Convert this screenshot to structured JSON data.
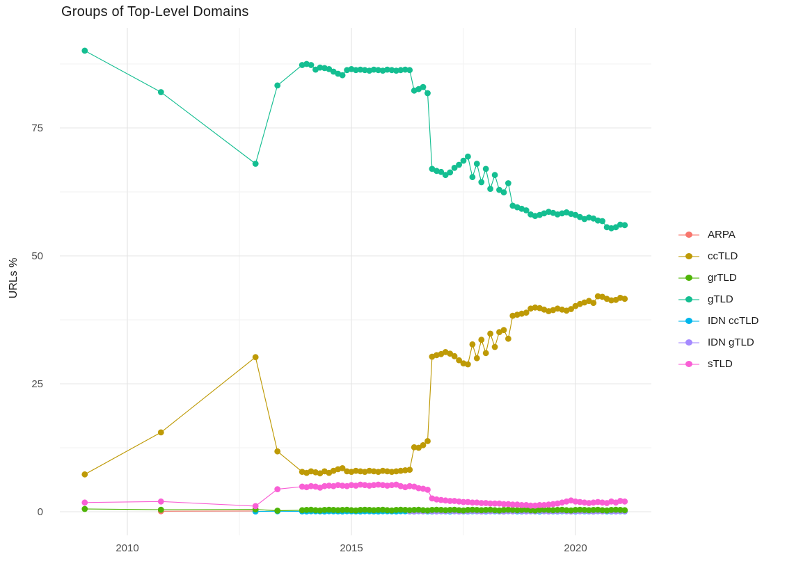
{
  "page": {
    "title": "Groups of Top-Level Domains"
  },
  "axes": {
    "ylabel": "URLs %",
    "x_major_ticks": [
      2010,
      2015,
      2020
    ],
    "x_minor_ticks": [
      2012.5,
      2017.5
    ],
    "y_major_ticks": [
      0,
      25,
      50,
      75
    ],
    "y_minor_ticks": [
      12.5,
      37.5,
      62.5,
      87.5
    ],
    "x_range": [
      2008.45,
      2021.7
    ],
    "y_range": [
      -4.5,
      94.5
    ]
  },
  "colors": {
    "grid_major": "#e4e4e4",
    "grid_minor": "#f2f2f2",
    "tick_text": "#4d4d4d",
    "title_text": "#1a1a1a"
  },
  "chart_data": {
    "type": "line",
    "title": "Groups of Top-Level Domains",
    "xlabel": "",
    "ylabel": "URLs %",
    "grid": true,
    "legend_position": "right",
    "series": [
      {
        "name": "ARPA",
        "color": "#F8766D",
        "z": 1,
        "early": [
          [
            2010.75,
            0.1
          ],
          [
            2012.86,
            0.15
          ]
        ],
        "dense": null
      },
      {
        "name": "ccTLD",
        "color": "#BE9A06",
        "z": 2,
        "early": [
          [
            2009.05,
            7.3
          ],
          [
            2010.75,
            15.5
          ],
          [
            2012.86,
            30.2
          ],
          [
            2013.35,
            11.8
          ]
        ],
        "dense": {
          "x0": 2013.9,
          "dx": 0.1,
          "values": [
            7.8,
            7.6,
            7.9,
            7.7,
            7.5,
            7.9,
            7.6,
            8.0,
            8.3,
            8.5,
            7.9,
            7.8,
            8.0,
            7.9,
            7.8,
            8.0,
            7.9,
            7.8,
            8.0,
            7.9,
            7.8,
            7.9,
            8.0,
            8.1,
            8.2,
            12.6,
            12.5,
            13.0,
            13.8,
            30.3,
            30.6,
            30.8,
            31.2,
            30.9,
            30.4,
            29.6,
            29.0,
            28.8,
            32.7,
            30.0,
            33.6,
            31.0,
            34.8,
            32.2,
            35.1,
            35.5,
            33.8,
            38.3,
            38.5,
            38.7,
            38.9,
            39.7,
            39.9,
            39.8,
            39.5,
            39.2,
            39.4,
            39.7,
            39.5,
            39.3,
            39.6,
            40.2,
            40.6,
            40.9,
            41.2,
            40.8,
            42.1,
            42.0,
            41.6,
            41.3,
            41.4,
            41.8,
            41.6
          ]
        }
      },
      {
        "name": "grTLD",
        "color": "#4EB406",
        "z": 6,
        "early": [
          [
            2009.05,
            0.55
          ],
          [
            2010.75,
            0.4
          ],
          [
            2012.86,
            0.45
          ],
          [
            2013.35,
            0.2
          ]
        ],
        "dense": {
          "x0": 2013.9,
          "dx": 0.1,
          "values": [
            0.3,
            0.35,
            0.4,
            0.3,
            0.25,
            0.35,
            0.4,
            0.35,
            0.3,
            0.35,
            0.4,
            0.3,
            0.25,
            0.35,
            0.4,
            0.35,
            0.3,
            0.35,
            0.4,
            0.3,
            0.25,
            0.35,
            0.4,
            0.35,
            0.3,
            0.35,
            0.4,
            0.3,
            0.25,
            0.35,
            0.4,
            0.35,
            0.3,
            0.35,
            0.4,
            0.3,
            0.25,
            0.35,
            0.4,
            0.35,
            0.3,
            0.35,
            0.4,
            0.3,
            0.25,
            0.35,
            0.4,
            0.35,
            0.3,
            0.35,
            0.4,
            0.3,
            0.25,
            0.35,
            0.4,
            0.35,
            0.3,
            0.35,
            0.4,
            0.3,
            0.25,
            0.35,
            0.4,
            0.35,
            0.3,
            0.35,
            0.4,
            0.3,
            0.25,
            0.35,
            0.4,
            0.35,
            0.3
          ]
        }
      },
      {
        "name": "gTLD",
        "color": "#14BE91",
        "z": 3,
        "early": [
          [
            2009.05,
            90.1
          ],
          [
            2010.75,
            82.0
          ],
          [
            2012.86,
            68.0
          ],
          [
            2013.35,
            83.3
          ]
        ],
        "dense": {
          "x0": 2013.9,
          "dx": 0.1,
          "values": [
            87.3,
            87.5,
            87.3,
            86.4,
            86.8,
            86.7,
            86.5,
            86.0,
            85.6,
            85.3,
            86.3,
            86.5,
            86.3,
            86.4,
            86.3,
            86.2,
            86.4,
            86.3,
            86.2,
            86.4,
            86.3,
            86.2,
            86.3,
            86.4,
            86.3,
            82.3,
            82.6,
            83.0,
            81.8,
            67.0,
            66.6,
            66.4,
            65.8,
            66.3,
            67.2,
            67.8,
            68.6,
            69.4,
            65.4,
            68.0,
            64.4,
            67.0,
            63.1,
            65.8,
            62.9,
            62.4,
            64.2,
            59.8,
            59.5,
            59.2,
            58.9,
            58.1,
            57.8,
            58.0,
            58.3,
            58.6,
            58.4,
            58.1,
            58.3,
            58.5,
            58.2,
            58.0,
            57.6,
            57.2,
            57.5,
            57.3,
            56.9,
            56.8,
            55.6,
            55.4,
            55.6,
            56.1,
            56.0
          ]
        }
      },
      {
        "name": "IDN ccTLD",
        "color": "#00B6EB",
        "z": 4,
        "early": [
          [
            2012.86,
            0.05
          ],
          [
            2013.35,
            0.1
          ]
        ],
        "dense": {
          "x0": 2013.9,
          "dx": 0.1,
          "values": [
            0.07,
            0.05,
            0.1,
            0.08,
            0.07,
            0.05,
            0.1,
            0.08,
            0.07,
            0.05,
            0.1,
            0.08,
            0.07,
            0.05,
            0.1,
            0.08,
            0.07,
            0.05,
            0.1,
            0.08,
            0.07,
            0.05,
            0.1,
            0.08,
            0.07,
            0.05,
            0.1,
            0.08,
            0.07,
            0.05,
            0.1,
            0.08,
            0.07,
            0.05,
            0.1,
            0.08,
            0.07,
            0.05,
            0.1,
            0.08,
            0.07,
            0.05,
            0.1,
            0.08,
            0.07,
            0.05,
            0.1,
            0.08,
            0.07,
            0.05,
            0.1,
            0.08,
            0.07,
            0.05,
            0.1,
            0.08,
            0.07,
            0.05,
            0.1,
            0.08,
            0.07,
            0.05,
            0.1,
            0.08,
            0.07,
            0.05,
            0.1,
            0.08,
            0.07,
            0.05,
            0.1,
            0.08,
            0.07
          ]
        }
      },
      {
        "name": "IDN gTLD",
        "color": "#A58AFF",
        "z": 5,
        "early": [],
        "dense": {
          "x0": 2016.3,
          "dx": 0.1,
          "values": [
            0.1,
            0.05,
            0.12,
            0.08,
            0.15,
            0.1,
            0.05,
            0.12,
            0.08,
            0.15,
            0.1,
            0.05,
            0.12,
            0.08,
            0.15,
            0.1,
            0.05,
            0.12,
            0.08,
            0.15,
            0.1,
            0.05,
            0.12,
            0.08,
            0.15,
            0.1,
            0.05,
            0.12,
            0.08,
            0.15,
            0.1,
            0.05,
            0.12,
            0.08,
            0.15,
            0.1,
            0.05,
            0.12,
            0.08,
            0.15,
            0.1,
            0.05,
            0.12,
            0.08,
            0.15,
            0.1,
            0.05,
            0.12,
            0.08
          ]
        }
      },
      {
        "name": "sTLD",
        "color": "#F95FD5",
        "z": 7,
        "early": [
          [
            2009.05,
            1.8
          ],
          [
            2010.75,
            2.0
          ],
          [
            2012.86,
            1.1
          ],
          [
            2013.35,
            4.4
          ]
        ],
        "dense": {
          "x0": 2013.9,
          "dx": 0.1,
          "values": [
            4.9,
            4.8,
            5.0,
            4.9,
            4.7,
            5.0,
            5.1,
            5.0,
            5.2,
            5.1,
            5.0,
            5.2,
            5.1,
            5.3,
            5.2,
            5.1,
            5.2,
            5.3,
            5.2,
            5.1,
            5.2,
            5.3,
            5.0,
            4.8,
            5.0,
            4.9,
            4.6,
            4.5,
            4.3,
            2.6,
            2.4,
            2.3,
            2.2,
            2.1,
            2.1,
            2.0,
            1.9,
            1.9,
            1.8,
            1.8,
            1.7,
            1.7,
            1.6,
            1.6,
            1.6,
            1.5,
            1.5,
            1.4,
            1.4,
            1.3,
            1.3,
            1.2,
            1.2,
            1.3,
            1.3,
            1.4,
            1.5,
            1.6,
            1.8,
            2.0,
            2.2,
            2.0,
            1.9,
            1.8,
            1.7,
            1.8,
            1.9,
            1.8,
            1.7,
            2.0,
            1.8,
            2.1,
            2.0
          ]
        }
      }
    ]
  }
}
